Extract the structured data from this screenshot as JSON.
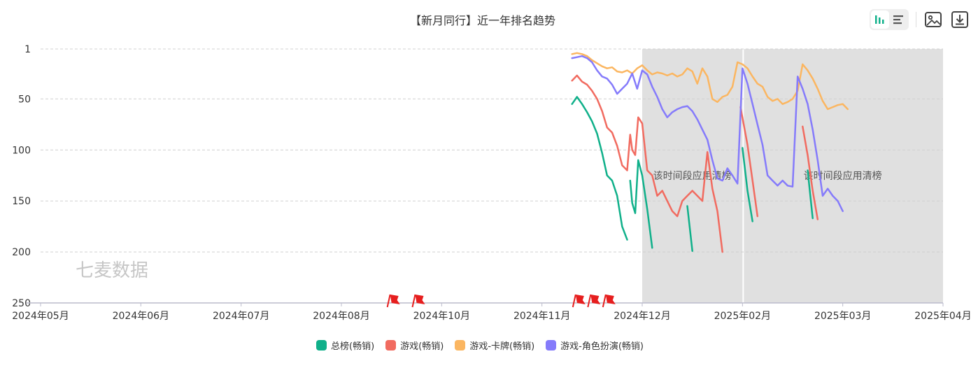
{
  "header": {
    "title": "【新月同行】近一年排名趋势"
  },
  "toolbar": {
    "view_modes": [
      {
        "icon": "bar-chart-icon",
        "active": true
      },
      {
        "icon": "list-icon",
        "active": false
      }
    ],
    "actions": [
      {
        "icon": "image-download-icon"
      },
      {
        "icon": "download-icon"
      }
    ]
  },
  "colors": {
    "accent": "#10b08a",
    "grid": "#d0d0d0",
    "axis": "#bbbbcc",
    "shade": "#e0e0e0",
    "marker": "#e61e1e"
  },
  "chart_data": {
    "type": "line",
    "title": "【新月同行】近一年排名趋势",
    "watermark": "七麦数据",
    "y_axis": {
      "ticks": [
        1,
        50,
        100,
        150,
        200,
        250
      ],
      "range": [
        1,
        250
      ],
      "inverted": true
    },
    "x_axis": {
      "ticks": [
        "2024年05月",
        "2024年06月",
        "2024年07月",
        "2024年08月",
        "2024年10月",
        "2024年11月",
        "2024年12月",
        "2025年02月",
        "2025年03月",
        "2025年04月"
      ]
    },
    "grid": true,
    "legend_position": "bottom",
    "shaded_regions": [
      {
        "start": "2024年12月",
        "end": "2025年02月",
        "label": "该时间段应用清榜"
      },
      {
        "start": "2025年02月",
        "end": "2025年04月",
        "label": "该时间段应用清榜"
      }
    ],
    "event_markers": [
      3.5,
      3.75,
      5.35,
      5.5,
      5.65
    ],
    "series": [
      {
        "name": "总榜(畅销)",
        "color": "#10b08a",
        "segments": [
          [
            [
              5.3,
              55
            ],
            [
              5.35,
              48
            ],
            [
              5.4,
              55
            ],
            [
              5.45,
              63
            ],
            [
              5.5,
              72
            ],
            [
              5.55,
              84
            ],
            [
              5.6,
              103
            ],
            [
              5.65,
              125
            ],
            [
              5.7,
              130
            ],
            [
              5.75,
              145
            ],
            [
              5.8,
              175
            ],
            [
              5.85,
              188
            ]
          ],
          [
            [
              5.88,
              130
            ],
            [
              5.9,
              152
            ],
            [
              5.93,
              162
            ],
            [
              5.96,
              110
            ],
            [
              6.0,
              125
            ],
            [
              6.05,
              158
            ],
            [
              6.1,
              196
            ]
          ],
          [
            [
              6.45,
              155
            ],
            [
              6.5,
              199
            ]
          ],
          [
            [
              7.0,
              98
            ],
            [
              7.05,
              140
            ],
            [
              7.1,
              170
            ]
          ],
          [
            [
              7.65,
              120
            ],
            [
              7.7,
              167
            ]
          ]
        ]
      },
      {
        "name": "游戏(畅销)",
        "color": "#f16b60",
        "segments": [
          [
            [
              5.3,
              32
            ],
            [
              5.35,
              27
            ],
            [
              5.4,
              33
            ],
            [
              5.45,
              36
            ],
            [
              5.5,
              42
            ],
            [
              5.55,
              50
            ],
            [
              5.6,
              62
            ],
            [
              5.65,
              78
            ],
            [
              5.7,
              83
            ],
            [
              5.75,
              96
            ],
            [
              5.8,
              115
            ],
            [
              5.85,
              120
            ],
            [
              5.88,
              85
            ],
            [
              5.9,
              100
            ],
            [
              5.93,
              105
            ],
            [
              5.96,
              68
            ],
            [
              6.0,
              74
            ],
            [
              6.05,
              120
            ],
            [
              6.1,
              125
            ],
            [
              6.15,
              145
            ],
            [
              6.2,
              140
            ],
            [
              6.25,
              150
            ],
            [
              6.3,
              160
            ],
            [
              6.35,
              165
            ],
            [
              6.4,
              150
            ],
            [
              6.45,
              145
            ],
            [
              6.5,
              140
            ],
            [
              6.55,
              145
            ],
            [
              6.6,
              150
            ],
            [
              6.65,
              102
            ],
            [
              6.7,
              138
            ],
            [
              6.75,
              160
            ],
            [
              6.8,
              200
            ]
          ],
          [
            [
              6.98,
              58
            ],
            [
              7.05,
              95
            ],
            [
              7.1,
              130
            ],
            [
              7.15,
              165
            ]
          ],
          [
            [
              7.6,
              77
            ],
            [
              7.65,
              105
            ],
            [
              7.7,
              140
            ],
            [
              7.75,
              168
            ]
          ]
        ]
      },
      {
        "name": "游戏-卡牌(畅销)",
        "color": "#fbb661",
        "segments": [
          [
            [
              5.3,
              6
            ],
            [
              5.35,
              5
            ],
            [
              5.4,
              6
            ],
            [
              5.45,
              8
            ],
            [
              5.5,
              12
            ],
            [
              5.55,
              15
            ],
            [
              5.6,
              18
            ],
            [
              5.65,
              20
            ],
            [
              5.7,
              19
            ],
            [
              5.75,
              23
            ],
            [
              5.8,
              24
            ],
            [
              5.85,
              22
            ],
            [
              5.9,
              25
            ],
            [
              5.95,
              20
            ],
            [
              6.0,
              17
            ],
            [
              6.05,
              22
            ],
            [
              6.1,
              26
            ],
            [
              6.15,
              24
            ],
            [
              6.2,
              25
            ],
            [
              6.25,
              27
            ],
            [
              6.3,
              25
            ],
            [
              6.35,
              28
            ],
            [
              6.4,
              26
            ],
            [
              6.45,
              20
            ],
            [
              6.5,
              23
            ],
            [
              6.55,
              35
            ],
            [
              6.6,
              20
            ],
            [
              6.65,
              28
            ],
            [
              6.7,
              50
            ],
            [
              6.75,
              53
            ],
            [
              6.8,
              48
            ],
            [
              6.85,
              46
            ],
            [
              6.9,
              38
            ],
            [
              6.95,
              14
            ],
            [
              7.0,
              16
            ],
            [
              7.05,
              20
            ],
            [
              7.1,
              28
            ],
            [
              7.15,
              35
            ],
            [
              7.2,
              38
            ],
            [
              7.25,
              48
            ],
            [
              7.3,
              52
            ],
            [
              7.35,
              50
            ],
            [
              7.4,
              55
            ],
            [
              7.45,
              53
            ],
            [
              7.5,
              50
            ],
            [
              7.55,
              42
            ],
            [
              7.6,
              16
            ],
            [
              7.65,
              22
            ],
            [
              7.7,
              30
            ],
            [
              7.75,
              40
            ],
            [
              7.8,
              52
            ],
            [
              7.85,
              60
            ],
            [
              7.9,
              58
            ],
            [
              7.95,
              56
            ],
            [
              8.0,
              55
            ],
            [
              8.05,
              60
            ]
          ]
        ]
      },
      {
        "name": "游戏-角色扮演(畅销)",
        "color": "#857bfb",
        "segments": [
          [
            [
              5.3,
              10
            ],
            [
              5.35,
              9
            ],
            [
              5.4,
              8
            ],
            [
              5.45,
              10
            ],
            [
              5.5,
              14
            ],
            [
              5.55,
              22
            ],
            [
              5.6,
              28
            ],
            [
              5.65,
              30
            ],
            [
              5.7,
              36
            ],
            [
              5.75,
              45
            ],
            [
              5.8,
              40
            ],
            [
              5.85,
              35
            ],
            [
              5.9,
              25
            ],
            [
              5.95,
              40
            ],
            [
              6.0,
              22
            ],
            [
              6.05,
              26
            ],
            [
              6.1,
              38
            ],
            [
              6.15,
              48
            ],
            [
              6.2,
              60
            ],
            [
              6.25,
              68
            ],
            [
              6.3,
              63
            ],
            [
              6.35,
              60
            ],
            [
              6.4,
              58
            ],
            [
              6.45,
              57
            ],
            [
              6.5,
              62
            ],
            [
              6.55,
              70
            ],
            [
              6.6,
              80
            ],
            [
              6.65,
              90
            ],
            [
              6.7,
              110
            ],
            [
              6.75,
              128
            ],
            [
              6.8,
              130
            ],
            [
              6.85,
              118
            ],
            [
              6.9,
              125
            ],
            [
              6.95,
              133
            ],
            [
              7.0,
              20
            ],
            [
              7.05,
              35
            ],
            [
              7.1,
              55
            ],
            [
              7.15,
              75
            ],
            [
              7.2,
              95
            ],
            [
              7.25,
              125
            ],
            [
              7.3,
              130
            ],
            [
              7.35,
              135
            ],
            [
              7.4,
              130
            ],
            [
              7.45,
              135
            ],
            [
              7.5,
              136
            ],
            [
              7.55,
              28
            ],
            [
              7.6,
              40
            ],
            [
              7.65,
              55
            ],
            [
              7.7,
              80
            ],
            [
              7.75,
              110
            ],
            [
              7.8,
              145
            ],
            [
              7.85,
              138
            ],
            [
              7.9,
              145
            ],
            [
              7.95,
              150
            ],
            [
              8.0,
              160
            ]
          ]
        ]
      }
    ]
  }
}
